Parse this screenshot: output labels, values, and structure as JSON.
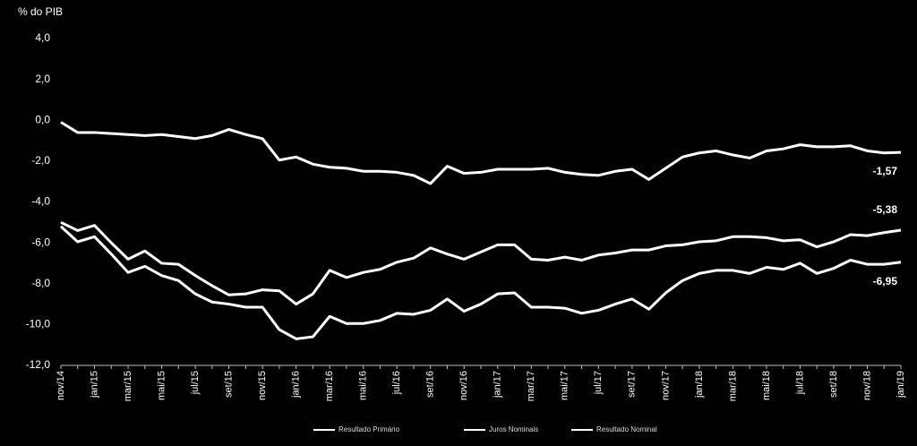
{
  "chart_data": {
    "type": "line",
    "y_axis_label": "% do PIB",
    "categories": [
      "nov/14",
      null,
      "jan/15",
      null,
      "mar/15",
      null,
      "mai/15",
      null,
      "jul/15",
      null,
      "set/15",
      null,
      "nov/15",
      null,
      "jan/16",
      null,
      "mar/16",
      null,
      "mai/16",
      null,
      "jul/16",
      null,
      "set/16",
      null,
      "nov/16",
      null,
      "jan/17",
      null,
      "mar/17",
      null,
      "mai/17",
      null,
      "jul/17",
      null,
      "set/17",
      null,
      "nov/17",
      null,
      "jan/18",
      null,
      "mar/18",
      null,
      "mai/18",
      null,
      "jul/18",
      null,
      "set/18",
      null,
      "nov/18",
      null,
      "jan/19"
    ],
    "series": [
      {
        "name": "Resultado Primário",
        "color": "#ffffff",
        "values": [
          -0.1,
          -0.6,
          -0.6,
          -0.65,
          -0.7,
          -0.75,
          -0.7,
          -0.8,
          -0.9,
          -0.75,
          -0.45,
          -0.7,
          -0.9,
          -1.95,
          -1.8,
          -2.15,
          -2.3,
          -2.35,
          -2.5,
          -2.5,
          -2.55,
          -2.7,
          -3.1,
          -2.25,
          -2.6,
          -2.55,
          -2.4,
          -2.4,
          -2.4,
          -2.35,
          -2.55,
          -2.65,
          -2.7,
          -2.5,
          -2.4,
          -2.9,
          -2.35,
          -1.8,
          -1.6,
          -1.5,
          -1.7,
          -1.85,
          -1.5,
          -1.4,
          -1.2,
          -1.3,
          -1.3,
          -1.25,
          -1.5,
          -1.6,
          -1.57
        ],
        "value_labels": [
          null,
          null,
          null,
          null,
          null,
          null,
          null,
          null,
          null,
          null,
          null,
          null,
          null,
          null,
          null,
          null,
          null,
          null,
          null,
          null,
          null,
          null,
          null,
          null,
          null,
          null,
          null,
          null,
          null,
          null,
          null,
          null,
          null,
          null,
          null,
          null,
          null,
          null,
          null,
          null,
          null,
          null,
          null,
          null,
          null,
          null,
          null,
          null,
          null,
          null,
          "-1,57"
        ]
      },
      {
        "name": "Juros Nominais",
        "color": "#ffffff",
        "values": [
          -5.0,
          -5.4,
          -5.15,
          -6.0,
          -6.8,
          -6.4,
          -7.0,
          -7.05,
          -7.6,
          -8.1,
          -8.55,
          -8.5,
          -8.3,
          -8.35,
          -9.0,
          -8.5,
          -7.35,
          -7.7,
          -7.45,
          -7.3,
          -6.95,
          -6.75,
          -6.25,
          -6.55,
          -6.8,
          -6.45,
          -6.1,
          -6.1,
          -6.8,
          -6.85,
          -6.7,
          -6.85,
          -6.6,
          -6.5,
          -6.35,
          -6.35,
          -6.15,
          -6.1,
          -5.95,
          -5.9,
          -5.7,
          -5.7,
          -5.75,
          -5.9,
          -5.85,
          -6.2,
          -5.95,
          -5.6,
          -5.65,
          -5.5,
          -5.38
        ],
        "value_labels": [
          null,
          null,
          null,
          null,
          null,
          null,
          null,
          null,
          null,
          null,
          null,
          null,
          null,
          null,
          null,
          null,
          null,
          null,
          null,
          null,
          null,
          null,
          null,
          null,
          null,
          null,
          null,
          null,
          null,
          null,
          null,
          null,
          null,
          null,
          null,
          null,
          null,
          null,
          null,
          null,
          null,
          null,
          null,
          null,
          null,
          null,
          null,
          null,
          null,
          null,
          "-5,38"
        ]
      },
      {
        "name": "Resultado Nominal",
        "color": "#ffffff",
        "values": [
          -5.2,
          -5.95,
          -5.7,
          -6.55,
          -7.45,
          -7.15,
          -7.6,
          -7.85,
          -8.5,
          -8.9,
          -9.0,
          -9.15,
          -9.15,
          -10.25,
          -10.7,
          -10.6,
          -9.6,
          -9.95,
          -9.95,
          -9.8,
          -9.45,
          -9.5,
          -9.3,
          -8.75,
          -9.35,
          -9.0,
          -8.5,
          -8.45,
          -9.15,
          -9.15,
          -9.2,
          -9.45,
          -9.3,
          -9.0,
          -8.75,
          -9.25,
          -8.45,
          -7.85,
          -7.5,
          -7.35,
          -7.35,
          -7.5,
          -7.2,
          -7.3,
          -7.0,
          -7.5,
          -7.25,
          -6.85,
          -7.05,
          -7.05,
          -6.95
        ],
        "value_labels": [
          null,
          null,
          null,
          null,
          null,
          null,
          null,
          null,
          null,
          null,
          null,
          null,
          null,
          null,
          null,
          null,
          null,
          null,
          null,
          null,
          null,
          null,
          null,
          null,
          null,
          null,
          null,
          null,
          null,
          null,
          null,
          null,
          null,
          null,
          null,
          null,
          null,
          null,
          null,
          null,
          null,
          null,
          null,
          null,
          null,
          null,
          null,
          null,
          null,
          null,
          "-6,95"
        ]
      }
    ],
    "ylim": [
      -12,
      4
    ],
    "yticks": [
      {
        "value": -12,
        "label": "-12,0"
      },
      {
        "value": -10,
        "label": "-10,0"
      },
      {
        "value": -8,
        "label": "-8,0"
      },
      {
        "value": -6,
        "label": "-6,0"
      },
      {
        "value": -4,
        "label": "-4,0"
      },
      {
        "value": -2,
        "label": "-2,0"
      },
      {
        "value": 0,
        "label": "0,0"
      },
      {
        "value": 2,
        "label": "2,0"
      },
      {
        "value": 4,
        "label": "4,0"
      }
    ],
    "grid": false,
    "legend": "bottom"
  }
}
